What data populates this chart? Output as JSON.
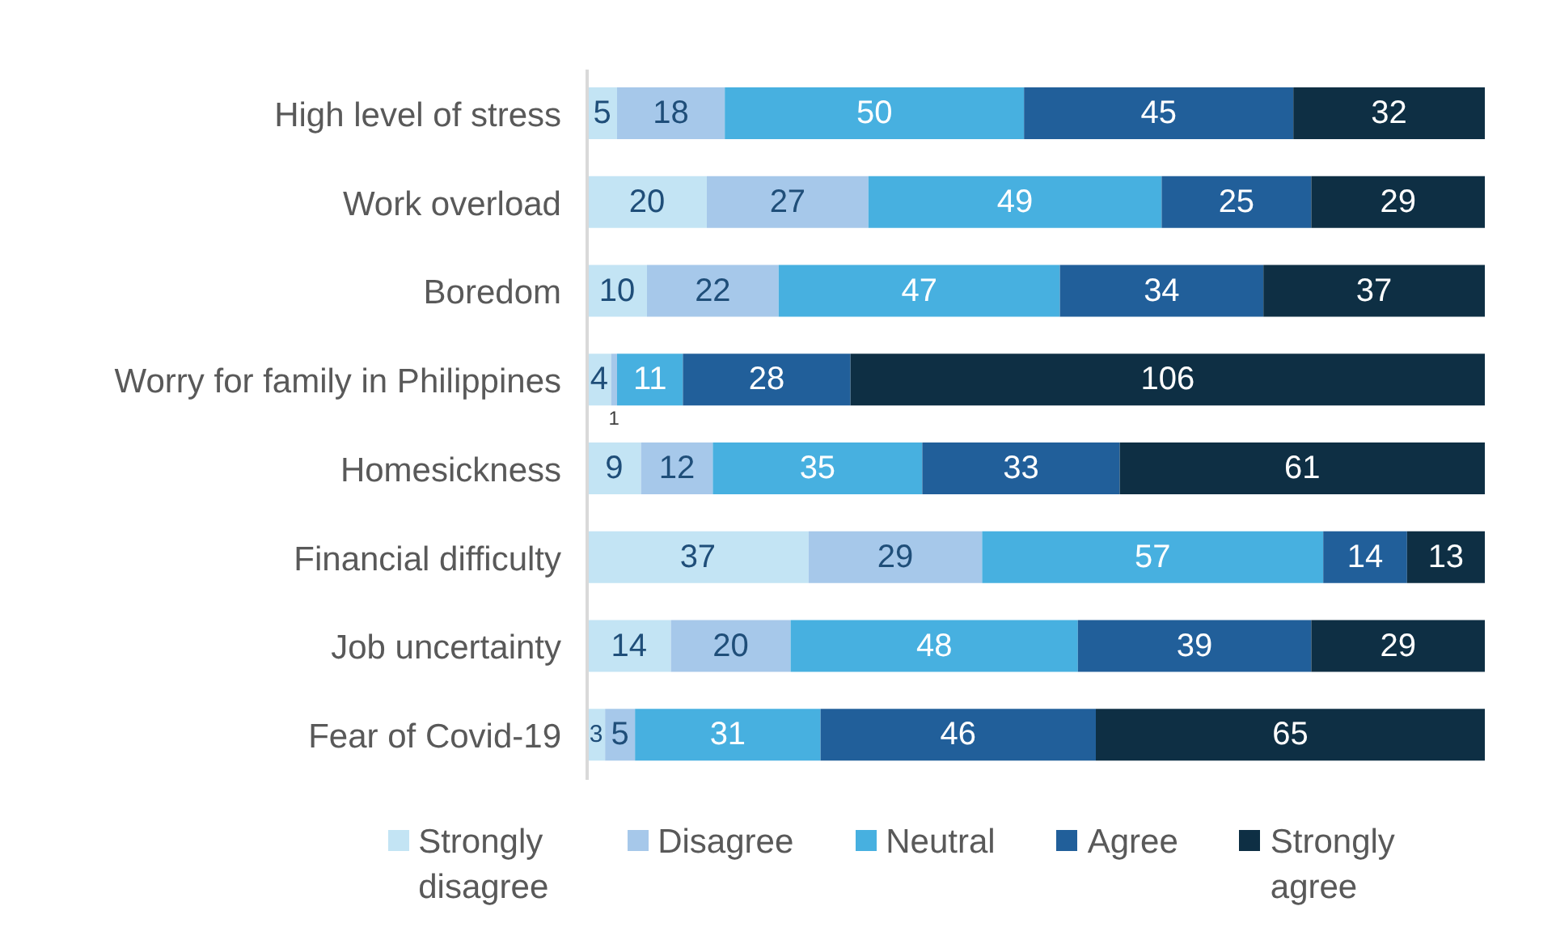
{
  "chart_data": {
    "type": "bar",
    "orientation": "horizontal",
    "stacked": true,
    "data_labels": true,
    "tick_labels": "y",
    "grid": false,
    "legend": "bottom",
    "categories": [
      "High level of stress",
      "Work overload",
      "Boredom",
      "Worry for family in Philippines",
      "Homesickness",
      "Financial difficulty",
      "Job uncertainty",
      "Fear of Covid-19"
    ],
    "xlim": [
      0,
      150
    ],
    "series": [
      {
        "name": "Strongly disagree",
        "color": "#c3e4f4",
        "values": [
          5,
          20,
          10,
          4,
          9,
          37,
          14,
          3
        ]
      },
      {
        "name": "Disagree",
        "color": "#a6c8ea",
        "values": [
          18,
          27,
          22,
          1,
          12,
          29,
          20,
          5
        ]
      },
      {
        "name": "Neutral",
        "color": "#47b0e0",
        "values": [
          50,
          49,
          47,
          11,
          35,
          57,
          48,
          31
        ]
      },
      {
        "name": "Agree",
        "color": "#215f9a",
        "values": [
          45,
          25,
          34,
          28,
          33,
          14,
          39,
          46
        ]
      },
      {
        "name": "Strongly agree",
        "color": "#0e2f44",
        "values": [
          32,
          29,
          37,
          106,
          61,
          13,
          29,
          65
        ]
      }
    ]
  }
}
